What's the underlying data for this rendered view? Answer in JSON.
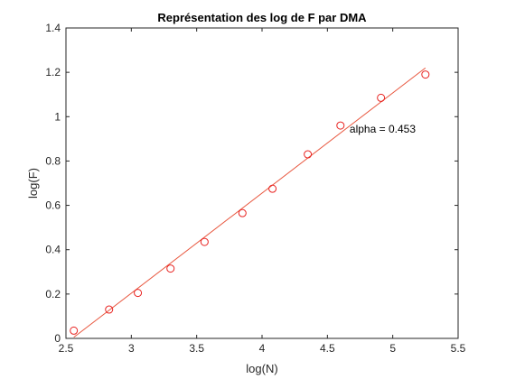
{
  "chart_data": {
    "type": "scatter",
    "title": "Représentation des log de F par DMA",
    "xlabel": "log(N)",
    "ylabel": "log(F)",
    "xlim": [
      2.5,
      5.5
    ],
    "ylim": [
      0,
      1.4
    ],
    "xticks": [
      2.5,
      3,
      3.5,
      4,
      4.5,
      5,
      5.5
    ],
    "yticks": [
      0,
      0.2,
      0.4,
      0.6,
      0.8,
      1,
      1.2,
      1.4
    ],
    "xtick_labels": [
      "2.5",
      "3",
      "3.5",
      "4",
      "4.5",
      "5",
      "5.5"
    ],
    "ytick_labels": [
      "0",
      "0.2",
      "0.4",
      "0.6",
      "0.8",
      "1",
      "1.2",
      "1.4"
    ],
    "grid": false,
    "series": [
      {
        "kind": "markers",
        "marker": "circle",
        "color": "#e8211f",
        "x": [
          2.56,
          2.83,
          3.05,
          3.3,
          3.56,
          3.85,
          4.08,
          4.35,
          4.6,
          4.91,
          5.25
        ],
        "y": [
          0.035,
          0.13,
          0.205,
          0.315,
          0.435,
          0.565,
          0.675,
          0.83,
          0.96,
          1.085,
          1.19
        ]
      },
      {
        "kind": "line",
        "color": "#e8573f",
        "x": [
          2.56,
          5.25
        ],
        "y": [
          0.005,
          1.22
        ]
      }
    ],
    "annotations": [
      {
        "text": "alpha = 0.453",
        "x": 4.67,
        "y": 0.945
      }
    ]
  }
}
